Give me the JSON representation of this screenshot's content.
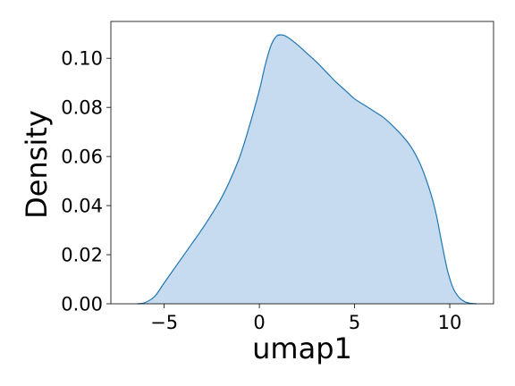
{
  "chart_data": {
    "type": "area",
    "title": "",
    "xlabel": "umap1",
    "ylabel": "Density",
    "xlim": [
      -7.8,
      12.3
    ],
    "ylim": [
      0.0,
      0.115
    ],
    "xticks": [
      -5,
      0,
      5,
      10
    ],
    "xtick_labels": [
      "−5",
      "0",
      "5",
      "10"
    ],
    "yticks": [
      0.0,
      0.02,
      0.04,
      0.06,
      0.08,
      0.1
    ],
    "ytick_labels": [
      "0.00",
      "0.02",
      "0.04",
      "0.06",
      "0.08",
      "0.10"
    ],
    "grid": false,
    "legend": false,
    "colors": {
      "line": "#1f77b4",
      "fill": "#c6dbef"
    },
    "series": [
      {
        "x": [
          -6.4,
          -6.0,
          -5.5,
          -5.0,
          -4.5,
          -4.0,
          -3.5,
          -3.0,
          -2.5,
          -2.0,
          -1.5,
          -1.0,
          -0.5,
          0.0,
          0.3,
          0.6,
          0.9,
          1.2,
          1.5,
          2.0,
          2.5,
          3.0,
          3.5,
          4.0,
          4.5,
          5.0,
          5.5,
          6.0,
          6.5,
          7.0,
          7.5,
          8.0,
          8.5,
          9.0,
          9.3,
          9.6,
          9.9,
          10.2,
          10.5,
          10.8,
          11.1,
          11.4
        ],
        "y": [
          0.0,
          0.0005,
          0.003,
          0.0085,
          0.014,
          0.0195,
          0.025,
          0.0305,
          0.0365,
          0.043,
          0.051,
          0.0605,
          0.073,
          0.087,
          0.097,
          0.105,
          0.109,
          0.1095,
          0.1085,
          0.1055,
          0.102,
          0.0985,
          0.0945,
          0.0905,
          0.087,
          0.0835,
          0.081,
          0.0785,
          0.076,
          0.0725,
          0.0685,
          0.0635,
          0.056,
          0.045,
          0.036,
          0.024,
          0.013,
          0.006,
          0.0025,
          0.0008,
          0.0002,
          0.0
        ]
      }
    ]
  }
}
